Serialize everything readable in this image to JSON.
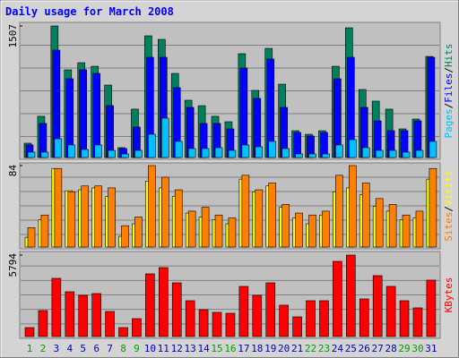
{
  "title": "Daily usage for March 2008",
  "legend_separator": "/",
  "chart_data": [
    {
      "type": "bar",
      "ylim": [
        0,
        1507
      ],
      "yticks": [
        1507
      ],
      "series": [
        {
          "name": "Hits",
          "color": "#00805c",
          "values": [
            164,
            472,
            1507,
            1004,
            1086,
            1045,
            830,
            113,
            554,
            1394,
            1353,
            963,
            656,
            594,
            472,
            410,
            1189,
            769,
            1250,
            840,
            307,
            266,
            307,
            1045,
            1486,
            779,
            646,
            554,
            328,
            441,
            1158
          ]
        },
        {
          "name": "Files",
          "color": "#0000ff",
          "values": [
            144,
            390,
            1230,
            902,
            1005,
            963,
            595,
            103,
            349,
            1148,
            1148,
            800,
            574,
            390,
            390,
            328,
            1025,
            677,
            1128,
            574,
            287,
            246,
            287,
            902,
            1148,
            574,
            420,
            308,
            308,
            420,
            1148
          ]
        },
        {
          "name": "Pages",
          "color": "#00c0ff",
          "values": [
            62,
            62,
            215,
            144,
            92,
            144,
            82,
            41,
            82,
            267,
            451,
            185,
            103,
            103,
            113,
            82,
            144,
            123,
            185,
            103,
            41,
            41,
            41,
            144,
            205,
            113,
            82,
            82,
            62,
            82,
            185
          ]
        }
      ]
    },
    {
      "type": "bar",
      "ylim": [
        0,
        84
      ],
      "yticks": [
        84
      ],
      "series": [
        {
          "name": "Visits",
          "color": "#ffff00",
          "values": [
            10,
            28,
            81,
            58,
            59,
            61,
            52,
            11,
            24,
            68,
            61,
            52,
            35,
            31,
            28,
            24,
            70,
            57,
            63,
            41,
            30,
            24,
            33,
            57,
            61,
            54,
            42,
            37,
            28,
            30,
            70
          ]
        },
        {
          "name": "Sites",
          "color": "#ff8000",
          "values": [
            20,
            33,
            81,
            57,
            63,
            63,
            61,
            22,
            31,
            84,
            72,
            59,
            37,
            41,
            33,
            30,
            74,
            59,
            66,
            44,
            35,
            33,
            37,
            74,
            84,
            66,
            50,
            44,
            33,
            37,
            81
          ]
        }
      ]
    },
    {
      "type": "bar",
      "ylim": [
        0,
        5794
      ],
      "yticks": [
        5794
      ],
      "categories": [
        "1",
        "2",
        "3",
        "4",
        "5",
        "6",
        "7",
        "8",
        "9",
        "10",
        "11",
        "12",
        "13",
        "14",
        "15",
        "16",
        "17",
        "18",
        "19",
        "20",
        "21",
        "22",
        "23",
        "24",
        "25",
        "26",
        "27",
        "28",
        "29",
        "30",
        "31"
      ],
      "category_colors": [
        "#00a000",
        "#00a000",
        "#0000c0",
        "#0000c0",
        "#0000c0",
        "#0000c0",
        "#0000c0",
        "#00a000",
        "#00a000",
        "#0000c0",
        "#0000c0",
        "#0000c0",
        "#0000c0",
        "#0000c0",
        "#00a000",
        "#00a000",
        "#0000c0",
        "#0000c0",
        "#0000c0",
        "#0000c0",
        "#0000c0",
        "#00a000",
        "#00a000",
        "#0000c0",
        "#0000c0",
        "#0000c0",
        "#0000c0",
        "#0000c0",
        "#00a000",
        "#00a000",
        "#0000c0"
      ],
      "series": [
        {
          "name": "KBytes",
          "color": "#ff0000",
          "values": [
            637,
            1847,
            4140,
            3185,
            2930,
            3057,
            1784,
            637,
            1274,
            4459,
            4905,
            3822,
            2548,
            1911,
            1720,
            1656,
            3567,
            2930,
            3822,
            2230,
            1401,
            2548,
            2548,
            5348,
            5794,
            2675,
            4332,
            3567,
            2548,
            2039,
            4013
          ]
        }
      ]
    }
  ]
}
